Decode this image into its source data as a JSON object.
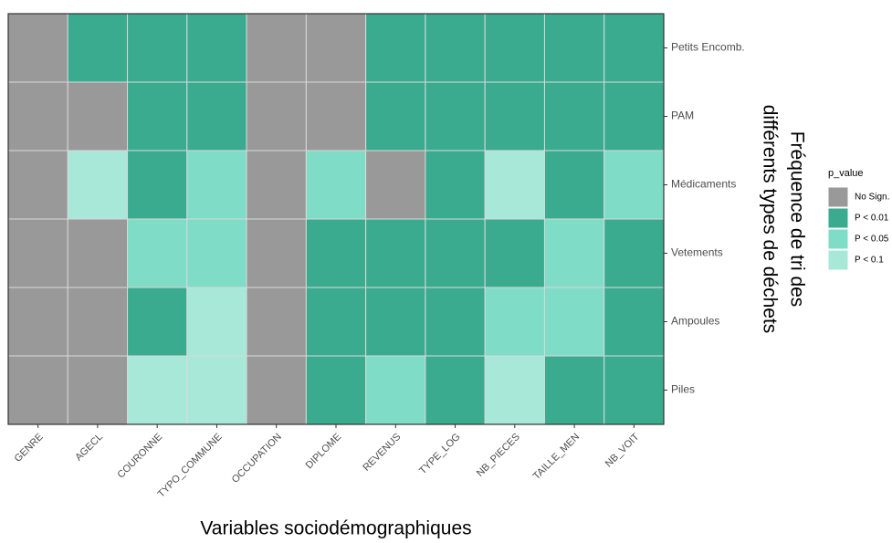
{
  "chart_data": {
    "type": "heatmap",
    "xlabel": "Variables sociodémographiques",
    "ylabel": [
      "Fréquence de tri des",
      "différents types de déchets"
    ],
    "categories": [
      "GENRE",
      "AGECL",
      "COURONNE",
      "TYPO_COMMUNE",
      "OCCUPATION",
      "DIPLOME",
      "REVENUS",
      "TYPE_LOG",
      "NB_PIECES",
      "TAILLE_MEN",
      "NB_VOIT"
    ],
    "rows": [
      "Petits Encomb.",
      "PAM",
      "Médicaments",
      "Vetements",
      "Ampoules",
      "Piles"
    ],
    "legend_title": "p_value",
    "levels": [
      {
        "name": "No Sign.",
        "color": "#999999"
      },
      {
        "name": "P < 0.01",
        "color": "#3aab8f"
      },
      {
        "name": "P < 0.05",
        "color": "#7fdcc7"
      },
      {
        "name": "P < 0.1",
        "color": "#a8e8d9"
      }
    ],
    "values": [
      [
        "No Sign.",
        "P < 0.01",
        "P < 0.01",
        "P < 0.01",
        "No Sign.",
        "No Sign.",
        "P < 0.01",
        "P < 0.01",
        "P < 0.01",
        "P < 0.01",
        "P < 0.01"
      ],
      [
        "No Sign.",
        "No Sign.",
        "P < 0.01",
        "P < 0.01",
        "No Sign.",
        "No Sign.",
        "P < 0.01",
        "P < 0.01",
        "P < 0.01",
        "P < 0.01",
        "P < 0.01"
      ],
      [
        "No Sign.",
        "P < 0.1",
        "P < 0.01",
        "P < 0.05",
        "No Sign.",
        "P < 0.05",
        "No Sign.",
        "P < 0.01",
        "P < 0.1",
        "P < 0.01",
        "P < 0.05"
      ],
      [
        "No Sign.",
        "No Sign.",
        "P < 0.05",
        "P < 0.05",
        "No Sign.",
        "P < 0.01",
        "P < 0.01",
        "P < 0.01",
        "P < 0.01",
        "P < 0.05",
        "P < 0.01"
      ],
      [
        "No Sign.",
        "No Sign.",
        "P < 0.01",
        "P < 0.1",
        "No Sign.",
        "P < 0.01",
        "P < 0.01",
        "P < 0.01",
        "P < 0.05",
        "P < 0.05",
        "P < 0.01"
      ],
      [
        "No Sign.",
        "No Sign.",
        "P < 0.1",
        "P < 0.1",
        "No Sign.",
        "P < 0.01",
        "P < 0.05",
        "P < 0.01",
        "P < 0.1",
        "P < 0.01",
        "P < 0.01"
      ]
    ]
  }
}
